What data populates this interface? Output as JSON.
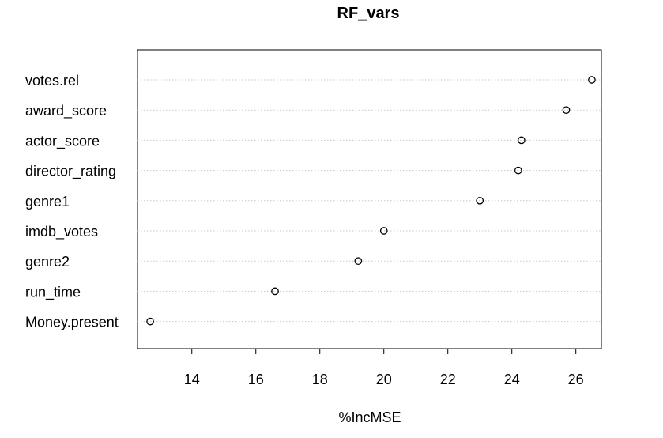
{
  "chart_data": {
    "type": "scatter",
    "subtype": "dotchart",
    "title": "RF_vars",
    "xlabel": "%IncMSE",
    "ylabel": "",
    "xlim": [
      12.5,
      26.6
    ],
    "x_ticks": [
      14,
      16,
      18,
      20,
      22,
      24,
      26
    ],
    "grid": "dotted horizontal lines at each category",
    "legend": "none",
    "marker": "open circle",
    "categories": [
      "votes.rel",
      "award_score",
      "actor_score",
      "director_rating",
      "genre1",
      "imdb_votes",
      "genre2",
      "run_time",
      "Money.present"
    ],
    "values": [
      26.5,
      25.7,
      24.3,
      24.2,
      23.0,
      20.0,
      19.2,
      16.6,
      12.7
    ]
  }
}
